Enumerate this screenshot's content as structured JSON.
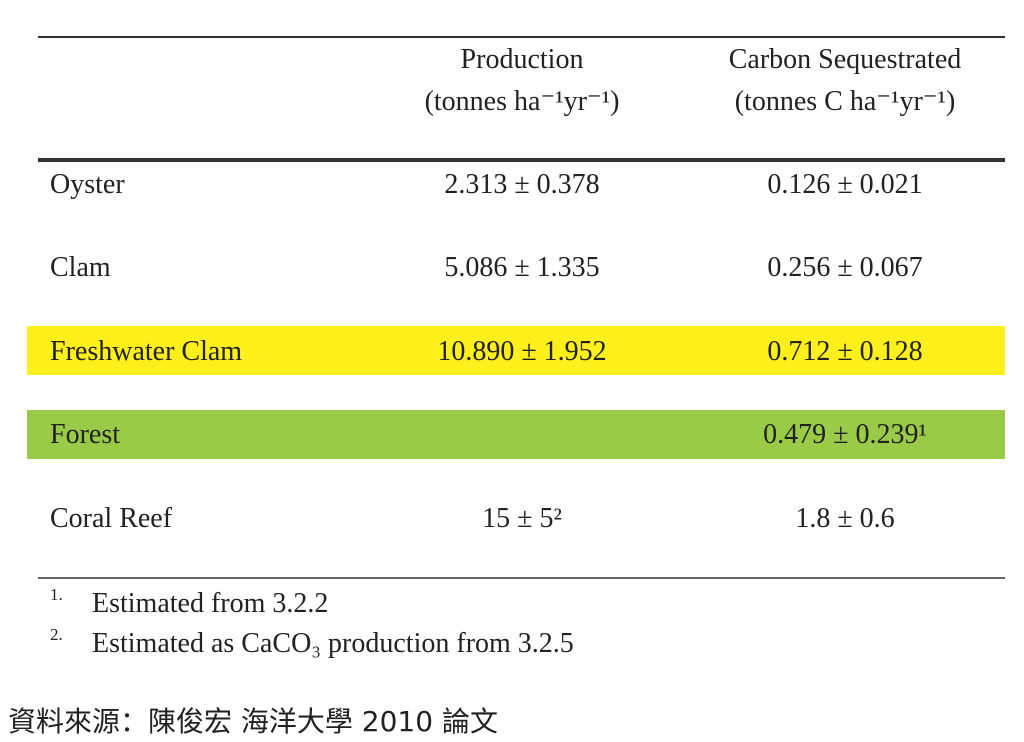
{
  "table": {
    "header": [
      "",
      "Production",
      "Carbon Sequestrated"
    ],
    "units": [
      "",
      "(tonnes ha⁻¹yr⁻¹)",
      "(tonnes C ha⁻¹yr⁻¹)"
    ],
    "rows": [
      [
        "Oyster",
        "2.313 ± 0.378",
        "0.126 ± 0.021"
      ],
      [
        "Clam",
        "5.086 ± 1.335",
        "0.256 ± 0.067"
      ],
      [
        "Freshwater Clam",
        "10.890 ± 1.952",
        "0.712 ± 0.128"
      ],
      [
        "Forest",
        "",
        "0.479 ± 0.239¹"
      ],
      [
        "Coral Reef",
        "15 ± 5²",
        "1.8 ± 0.6"
      ]
    ]
  },
  "footnotes": [
    {
      "marker": "1.",
      "text": "Estimated from 3.2.2"
    },
    {
      "marker": "2.",
      "text": "Estimated as CaCO₃ production from 3.2.5"
    }
  ],
  "source": "資料來源：陳俊宏 海洋大學 2010 論文"
}
